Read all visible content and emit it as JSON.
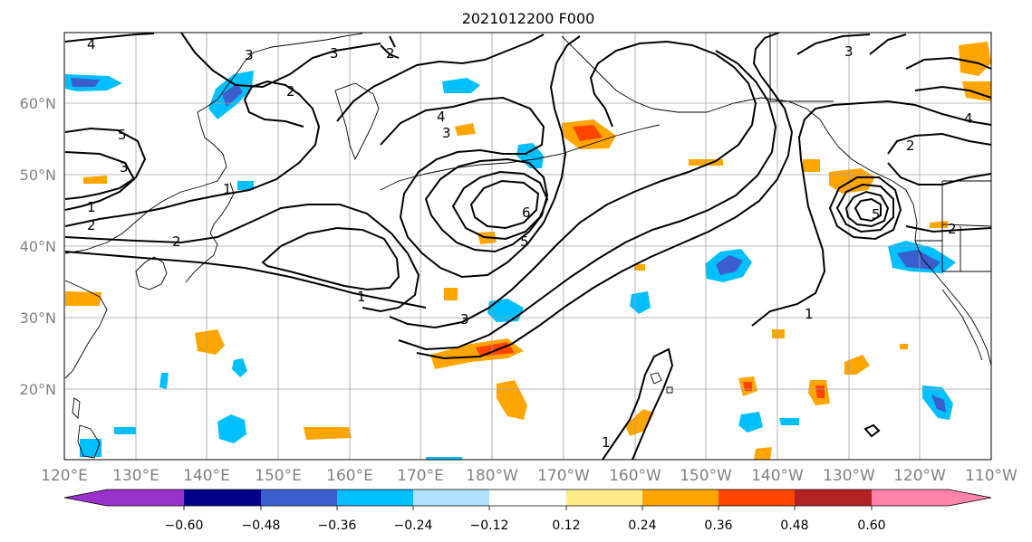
{
  "title": "2021012200 F000",
  "lat_labels": [
    "60°N",
    "50°N",
    "40°N",
    "30°N",
    "20°N"
  ],
  "lon_labels": [
    "120°E",
    "130°E",
    "140°E",
    "150°E",
    "160°E",
    "170°E",
    "180°W",
    "170°W",
    "160°W",
    "150°W",
    "140°W",
    "130°W",
    "120°W",
    "110°W"
  ],
  "colorbar": {
    "tick_labels": [
      "−0.60",
      "−0.48",
      "−0.36",
      "−0.24",
      "−0.12",
      "0.12",
      "0.24",
      "0.36",
      "0.48",
      "0.60"
    ],
    "colors": [
      "#9932cc",
      "#00008b",
      "#3a5fcd",
      "#00bfff",
      "#b0e2ff",
      "#ffffff",
      "#ffec8b",
      "#ffa500",
      "#ff4500",
      "#b22222",
      "#ff82ab"
    ]
  },
  "contour_labels": [
    "4",
    "3",
    "2",
    "3",
    "5",
    "2",
    "4",
    "3",
    "6",
    "5",
    "1",
    "3",
    "1",
    "2",
    "1",
    "3",
    "4",
    "2",
    "5",
    "2",
    "1",
    "1",
    "3",
    "2"
  ]
}
